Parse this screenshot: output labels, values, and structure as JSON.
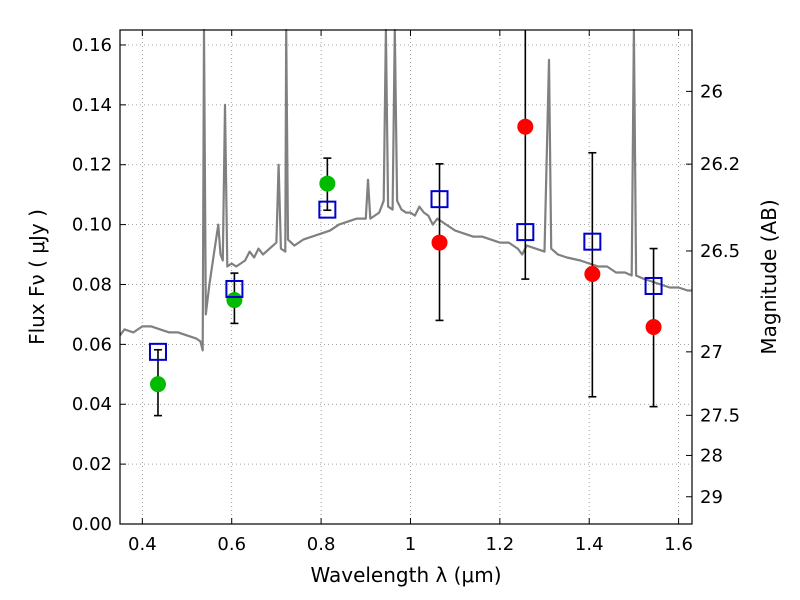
{
  "chart_data": {
    "type": "scatter",
    "xlabel": "Wavelength  λ (μm)",
    "ylabel": "Flux  Fν  ( μJy )",
    "ylabel_right": "Magnitude (AB)",
    "xlim": [
      0.35,
      1.63
    ],
    "ylim": [
      0.0,
      0.165
    ],
    "grid": true,
    "x_ticks": [
      0.4,
      0.6,
      0.8,
      1.0,
      1.2,
      1.4,
      1.6
    ],
    "x_tick_labels": [
      "0.4",
      "0.6",
      "0.8",
      "1",
      "1.2",
      "1.4",
      "1.6"
    ],
    "y_ticks": [
      0.0,
      0.02,
      0.04,
      0.06,
      0.08,
      0.1,
      0.12,
      0.14,
      0.16
    ],
    "y_tick_labels": [
      "0.00",
      "0.02",
      "0.04",
      "0.06",
      "0.08",
      "0.10",
      "0.12",
      "0.14",
      "0.16"
    ],
    "right_ticks": [
      {
        "label": "26",
        "flux": 0.1445
      },
      {
        "label": "26.2",
        "flux": 0.1202
      },
      {
        "label": "26.5",
        "flux": 0.0912
      },
      {
        "label": "27",
        "flux": 0.0575
      },
      {
        "label": "27.5",
        "flux": 0.0363
      },
      {
        "label": "28",
        "flux": 0.0229
      },
      {
        "label": "29",
        "flux": 0.0091
      }
    ],
    "series": [
      {
        "marker": "circle",
        "color": "#00bb00",
        "points": [
          {
            "x": 0.435,
            "y": 0.0467
          },
          {
            "x": 0.606,
            "y": 0.0748
          },
          {
            "x": 0.814,
            "y": 0.1137
          }
        ]
      },
      {
        "marker": "circle",
        "color": "#ff0000",
        "points": [
          {
            "x": 1.065,
            "y": 0.094
          },
          {
            "x": 1.257,
            "y": 0.1327
          },
          {
            "x": 1.407,
            "y": 0.0835
          },
          {
            "x": 1.544,
            "y": 0.0658
          }
        ]
      },
      {
        "marker": "square-open",
        "color": "#0000cc",
        "points": [
          {
            "x": 0.435,
            "y": 0.0575
          },
          {
            "x": 0.606,
            "y": 0.0785
          },
          {
            "x": 0.814,
            "y": 0.105
          },
          {
            "x": 1.065,
            "y": 0.1085
          },
          {
            "x": 1.257,
            "y": 0.0975
          },
          {
            "x": 1.407,
            "y": 0.0943
          },
          {
            "x": 1.544,
            "y": 0.0795
          }
        ]
      }
    ],
    "error_bars": [
      {
        "x": 0.435,
        "low": 0.0362,
        "high": 0.0582
      },
      {
        "x": 0.606,
        "low": 0.067,
        "high": 0.0838
      },
      {
        "x": 0.814,
        "low": 0.1048,
        "high": 0.1222
      },
      {
        "x": 1.065,
        "low": 0.068,
        "high": 0.1203
      },
      {
        "x": 1.257,
        "low": 0.0818,
        "high": 0.165
      },
      {
        "x": 1.407,
        "low": 0.0425,
        "high": 0.124
      },
      {
        "x": 1.544,
        "low": 0.0392,
        "high": 0.092
      }
    ],
    "model_spectrum": {
      "color": "#808080",
      "points": [
        [
          0.35,
          0.063
        ],
        [
          0.36,
          0.065
        ],
        [
          0.38,
          0.064
        ],
        [
          0.4,
          0.066
        ],
        [
          0.42,
          0.066
        ],
        [
          0.44,
          0.065
        ],
        [
          0.46,
          0.064
        ],
        [
          0.48,
          0.064
        ],
        [
          0.5,
          0.063
        ],
        [
          0.52,
          0.062
        ],
        [
          0.53,
          0.061
        ],
        [
          0.535,
          0.058
        ],
        [
          0.538,
          0.165
        ],
        [
          0.542,
          0.07
        ],
        [
          0.55,
          0.08
        ],
        [
          0.56,
          0.09
        ],
        [
          0.57,
          0.1
        ],
        [
          0.575,
          0.09
        ],
        [
          0.58,
          0.088
        ],
        [
          0.585,
          0.14
        ],
        [
          0.59,
          0.086
        ],
        [
          0.6,
          0.087
        ],
        [
          0.61,
          0.086
        ],
        [
          0.62,
          0.087
        ],
        [
          0.63,
          0.088
        ],
        [
          0.64,
          0.091
        ],
        [
          0.65,
          0.089
        ],
        [
          0.66,
          0.092
        ],
        [
          0.67,
          0.09
        ],
        [
          0.7,
          0.094
        ],
        [
          0.705,
          0.12
        ],
        [
          0.71,
          0.092
        ],
        [
          0.72,
          0.091
        ],
        [
          0.722,
          0.165
        ],
        [
          0.726,
          0.095
        ],
        [
          0.74,
          0.093
        ],
        [
          0.76,
          0.095
        ],
        [
          0.78,
          0.096
        ],
        [
          0.8,
          0.097
        ],
        [
          0.82,
          0.098
        ],
        [
          0.84,
          0.1
        ],
        [
          0.86,
          0.101
        ],
        [
          0.88,
          0.102
        ],
        [
          0.9,
          0.102
        ],
        [
          0.905,
          0.115
        ],
        [
          0.91,
          0.102
        ],
        [
          0.93,
          0.104
        ],
        [
          0.94,
          0.108
        ],
        [
          0.945,
          0.165
        ],
        [
          0.95,
          0.106
        ],
        [
          0.96,
          0.105
        ],
        [
          0.965,
          0.165
        ],
        [
          0.97,
          0.108
        ],
        [
          0.98,
          0.105
        ],
        [
          0.99,
          0.104
        ],
        [
          1.0,
          0.104
        ],
        [
          1.01,
          0.103
        ],
        [
          1.02,
          0.106
        ],
        [
          1.03,
          0.104
        ],
        [
          1.04,
          0.103
        ],
        [
          1.05,
          0.1
        ],
        [
          1.06,
          0.102
        ],
        [
          1.08,
          0.1
        ],
        [
          1.1,
          0.098
        ],
        [
          1.12,
          0.097
        ],
        [
          1.14,
          0.096
        ],
        [
          1.16,
          0.096
        ],
        [
          1.18,
          0.095
        ],
        [
          1.2,
          0.094
        ],
        [
          1.22,
          0.094
        ],
        [
          1.24,
          0.092
        ],
        [
          1.25,
          0.09
        ],
        [
          1.26,
          0.093
        ],
        [
          1.28,
          0.092
        ],
        [
          1.3,
          0.091
        ],
        [
          1.31,
          0.155
        ],
        [
          1.315,
          0.092
        ],
        [
          1.33,
          0.09
        ],
        [
          1.35,
          0.089
        ],
        [
          1.38,
          0.088
        ],
        [
          1.4,
          0.087
        ],
        [
          1.42,
          0.086
        ],
        [
          1.44,
          0.086
        ],
        [
          1.46,
          0.084
        ],
        [
          1.48,
          0.084
        ],
        [
          1.495,
          0.083
        ],
        [
          1.5,
          0.165
        ],
        [
          1.505,
          0.083
        ],
        [
          1.52,
          0.082
        ],
        [
          1.54,
          0.081
        ],
        [
          1.56,
          0.08
        ],
        [
          1.58,
          0.079
        ],
        [
          1.6,
          0.079
        ],
        [
          1.62,
          0.078
        ],
        [
          1.63,
          0.078
        ]
      ]
    }
  }
}
